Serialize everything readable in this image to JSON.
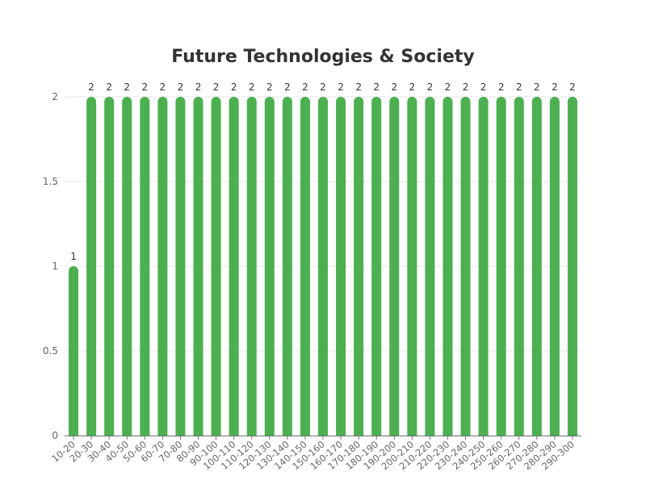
{
  "chart_data": {
    "type": "bar",
    "title": "Future Technologies & Society",
    "xlabel": "",
    "ylabel": "",
    "categories": [
      "10-20",
      "20-30",
      "30-40",
      "40-50",
      "50-60",
      "60-70",
      "70-80",
      "80-90",
      "90-100",
      "100-110",
      "110-120",
      "120-130",
      "130-140",
      "140-150",
      "150-160",
      "160-170",
      "170-180",
      "180-190",
      "190-200",
      "200-210",
      "210-220",
      "220-230",
      "230-240",
      "240-250",
      "250-260",
      "260-270",
      "270-280",
      "280-290",
      "290-300"
    ],
    "values": [
      1,
      2,
      2,
      2,
      2,
      2,
      2,
      2,
      2,
      2,
      2,
      2,
      2,
      2,
      2,
      2,
      2,
      2,
      2,
      2,
      2,
      2,
      2,
      2,
      2,
      2,
      2,
      2,
      2
    ],
    "ylim": [
      0,
      2
    ],
    "yticks": [
      "0",
      "0.5",
      "1",
      "1.5",
      "2"
    ],
    "grid": true,
    "legend": "none",
    "bar_color": "#4caf50",
    "data_labels": true
  }
}
